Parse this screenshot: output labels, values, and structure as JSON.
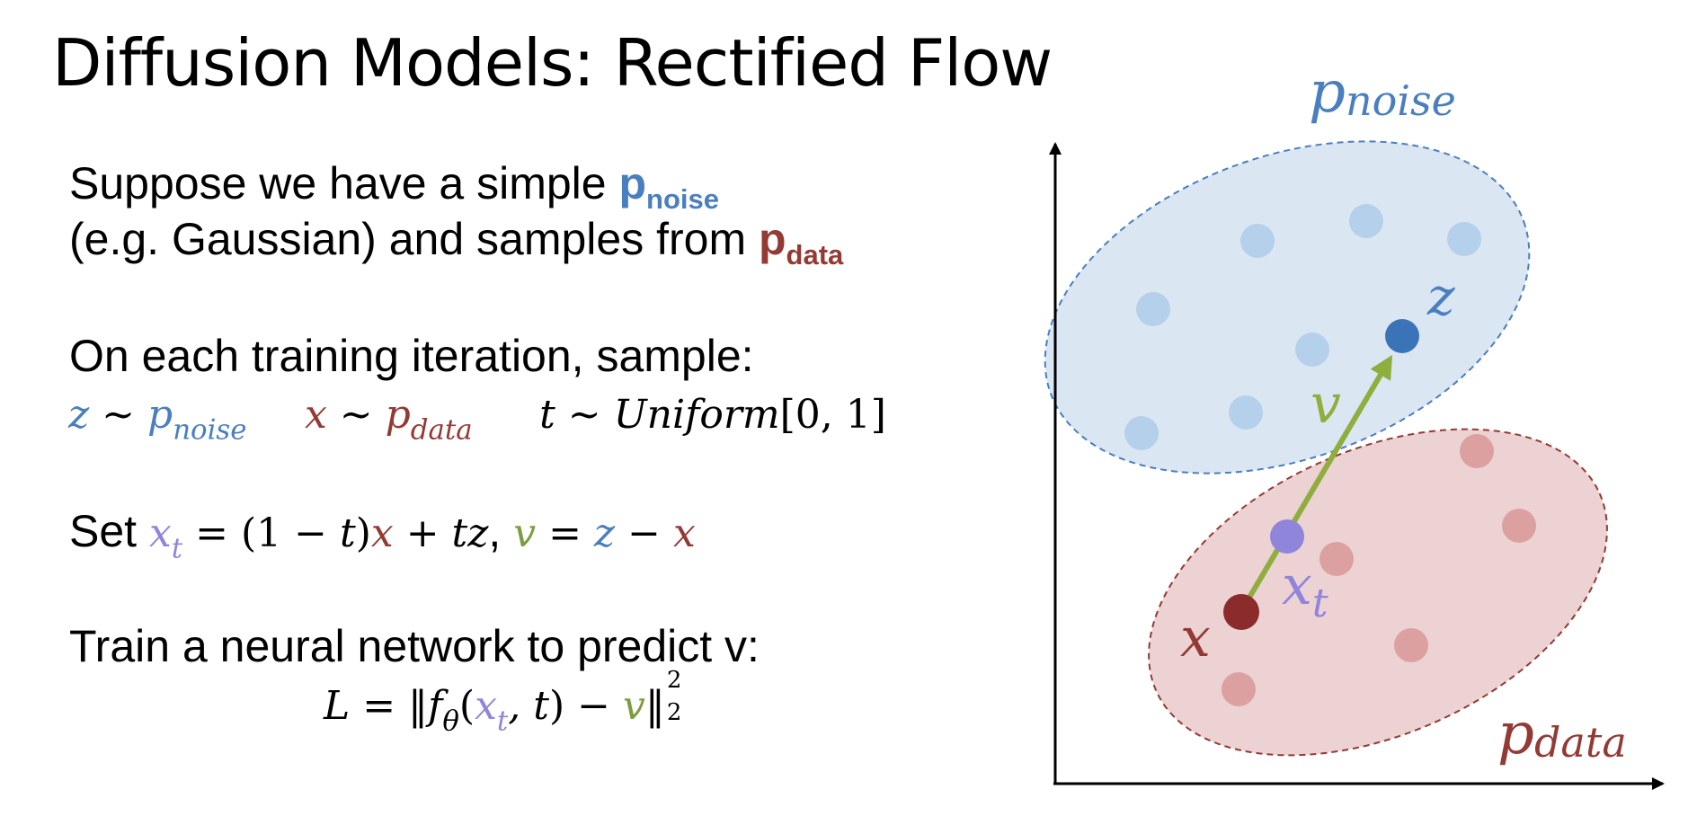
{
  "title": "Diffusion Models: Rectified Flow",
  "intro": {
    "line1_prefix": "Suppose we have a simple ",
    "p_noise_symbol": "p",
    "p_noise_sub": "noise",
    "line2_prefix": "(e.g. Gaussian) and samples from ",
    "p_data_symbol": "p",
    "p_data_sub": "data"
  },
  "sampling": {
    "heading": "On each training iteration, sample:",
    "z_var": "z",
    "tilde": " ~ ",
    "p_symbol": "p",
    "noise_sub": "noise",
    "x_var": "x",
    "data_sub": "data",
    "t_var": "t",
    "uniform": "Uniform",
    "range": "[0, 1]"
  },
  "set_line": {
    "prefix": "Set ",
    "xt_x": "x",
    "xt_t": "t",
    "eq1": " = (1 − ",
    "t_var": "t",
    "paren_close": ")",
    "x_var": "x",
    "plus": " + ",
    "tz": "tz",
    "comma": ", ",
    "v_var": "v",
    "eq2": " = ",
    "z_var": "z",
    "minus": " − ",
    "x_var2": "x"
  },
  "train": {
    "heading": "Train a neural network to predict v:",
    "loss_L": "L",
    "equals": " = ‖",
    "f": "f",
    "theta": "θ",
    "open": "(",
    "xt_x": "x",
    "xt_t": "t",
    "comma_t": ", t",
    "close": ") − ",
    "v": "v",
    "norm_close": "‖",
    "sup": "2",
    "sub": "2"
  },
  "diagram": {
    "p_noise_label": "p",
    "p_noise_sub": "noise",
    "p_data_label": "p",
    "p_data_sub": "data",
    "z_label": "z",
    "v_label": "v",
    "xt_label": "x",
    "xt_sub": "t",
    "x_label": "x",
    "colors": {
      "noise_fill": "#dbe6f3",
      "noise_stroke": "#4a7fbf",
      "noise_dot": "#b5d0ea",
      "z_dot": "#3b73b9",
      "data_fill": "#ecd2d2",
      "data_stroke": "#943a34",
      "data_dot": "#dda0a0",
      "x_dot": "#8b2b2b",
      "xt_dot": "#8f85db",
      "arrow": "#8fae3e",
      "axis": "#000000"
    }
  }
}
